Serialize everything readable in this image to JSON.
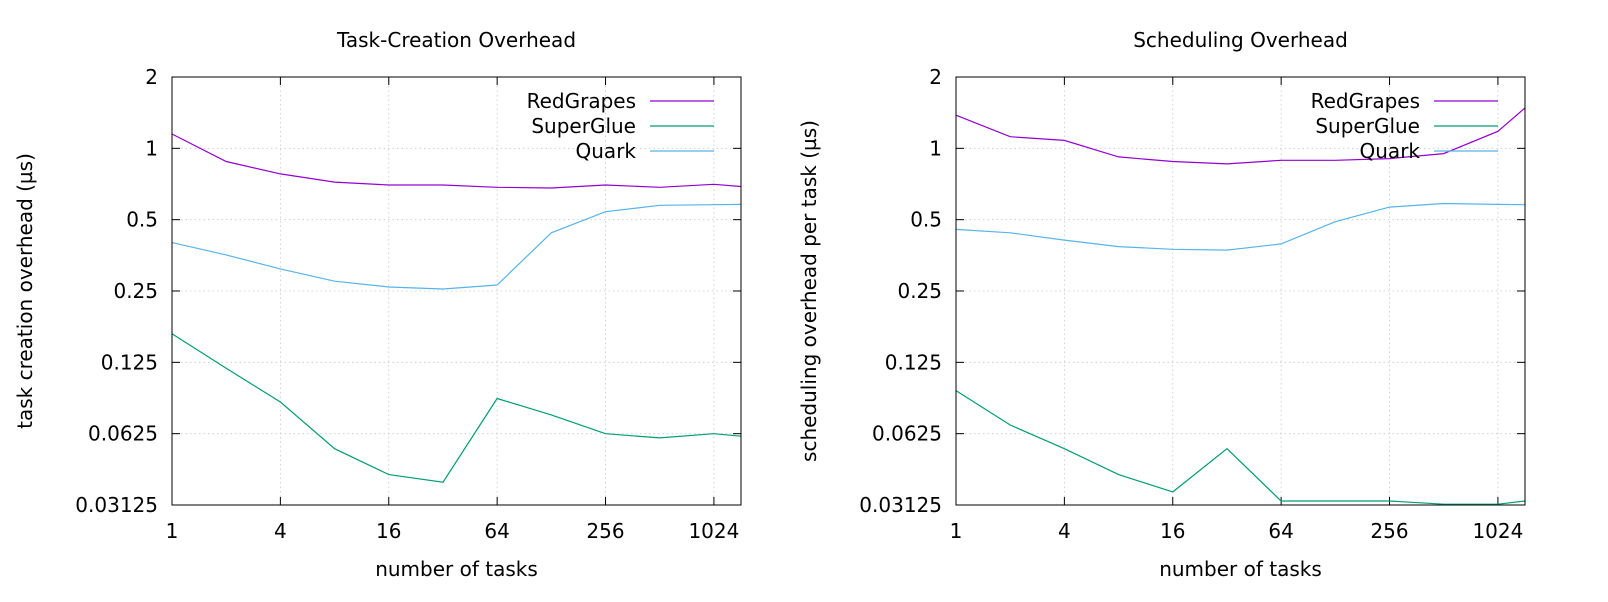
{
  "chart_data": [
    {
      "type": "line",
      "title": "Task-Creation Overhead",
      "xlabel": "number of tasks",
      "ylabel": "task creation overhead (µs)",
      "xscale": "log2",
      "yscale": "log2",
      "xlim": [
        1,
        1448
      ],
      "ylim": [
        0.03125,
        2
      ],
      "xticks": [
        1,
        4,
        16,
        64,
        256,
        1024
      ],
      "xtick_labels": [
        "1",
        "4",
        "16",
        "64",
        "256",
        "1024"
      ],
      "yticks": [
        0.03125,
        0.0625,
        0.125,
        0.25,
        0.5,
        1,
        2
      ],
      "ytick_labels": [
        "0.03125",
        "0.0625",
        "0.125",
        "0.25",
        "0.5",
        "1",
        "2"
      ],
      "grid": true,
      "legend_position": "top-right",
      "x": [
        1,
        2,
        4,
        8,
        16,
        32,
        64,
        128,
        256,
        512,
        1024,
        1448
      ],
      "series": [
        {
          "name": "RedGrapes",
          "color": "#9400d3",
          "values": [
            1.15,
            0.88,
            0.78,
            0.72,
            0.7,
            0.7,
            0.685,
            0.68,
            0.7,
            0.685,
            0.705,
            0.69
          ]
        },
        {
          "name": "SuperGlue",
          "color": "#009e73",
          "values": [
            0.165,
            0.118,
            0.085,
            0.054,
            0.042,
            0.039,
            0.088,
            0.075,
            0.0625,
            0.06,
            0.0625,
            0.061
          ]
        },
        {
          "name": "Quark",
          "color": "#56b4e9",
          "values": [
            0.4,
            0.355,
            0.31,
            0.275,
            0.26,
            0.255,
            0.265,
            0.44,
            0.54,
            0.575,
            0.578,
            0.58
          ]
        }
      ]
    },
    {
      "type": "line",
      "title": "Scheduling Overhead",
      "xlabel": "number of tasks",
      "ylabel": "scheduling overhead per task (µs)",
      "xscale": "log2",
      "yscale": "log2",
      "xlim": [
        1,
        1448
      ],
      "ylim": [
        0.03125,
        2
      ],
      "xticks": [
        1,
        4,
        16,
        64,
        256,
        1024
      ],
      "xtick_labels": [
        "1",
        "4",
        "16",
        "64",
        "256",
        "1024"
      ],
      "yticks": [
        0.03125,
        0.0625,
        0.125,
        0.25,
        0.5,
        1,
        2
      ],
      "ytick_labels": [
        "0.03125",
        "0.0625",
        "0.125",
        "0.25",
        "0.5",
        "1",
        "2"
      ],
      "grid": true,
      "legend_position": "top-right",
      "x": [
        1,
        2,
        4,
        8,
        16,
        32,
        64,
        128,
        256,
        512,
        1024,
        1448
      ],
      "series": [
        {
          "name": "RedGrapes",
          "color": "#9400d3",
          "values": [
            1.38,
            1.12,
            1.08,
            0.92,
            0.88,
            0.86,
            0.89,
            0.89,
            0.905,
            0.95,
            1.18,
            1.48
          ]
        },
        {
          "name": "SuperGlue",
          "color": "#009e73",
          "values": [
            0.095,
            0.068,
            0.054,
            0.042,
            0.0355,
            0.054,
            0.0325,
            0.0325,
            0.0325,
            0.0315,
            0.0315,
            0.0325
          ]
        },
        {
          "name": "Quark",
          "color": "#56b4e9",
          "values": [
            0.455,
            0.44,
            0.41,
            0.385,
            0.375,
            0.372,
            0.395,
            0.49,
            0.565,
            0.585,
            0.58,
            0.578
          ]
        }
      ]
    }
  ]
}
